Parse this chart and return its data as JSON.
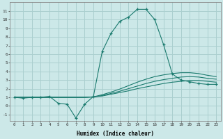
{
  "background_color": "#cce8e8",
  "grid_color": "#aacfcf",
  "line_color": "#1a7a6e",
  "xlabel": "Humidex (Indice chaleur)",
  "xlim": [
    -0.5,
    23.5
  ],
  "ylim": [
    -1.7,
    12.0
  ],
  "xticks": [
    0,
    1,
    2,
    3,
    4,
    5,
    6,
    7,
    8,
    9,
    10,
    11,
    12,
    13,
    14,
    15,
    16,
    17,
    18,
    19,
    20,
    21,
    22,
    23
  ],
  "yticks": [
    -1,
    0,
    1,
    2,
    3,
    4,
    5,
    6,
    7,
    8,
    9,
    10,
    11
  ],
  "series": [
    {
      "x": [
        0,
        1,
        2,
        3,
        4,
        5,
        6,
        7,
        8,
        9,
        10,
        11,
        12,
        13,
        14,
        15,
        16,
        17,
        18,
        19,
        20,
        21,
        22,
        23
      ],
      "y": [
        1.0,
        0.9,
        1.0,
        1.0,
        1.1,
        0.3,
        0.2,
        -1.4,
        0.2,
        1.1,
        6.3,
        8.4,
        9.8,
        10.3,
        11.2,
        11.2,
        10.0,
        7.1,
        3.7,
        3.0,
        2.8,
        2.6,
        2.5,
        2.5
      ],
      "marker": "+",
      "markersize": 3.5
    },
    {
      "x": [
        0,
        1,
        2,
        3,
        4,
        5,
        6,
        7,
        8,
        9,
        10,
        11,
        12,
        13,
        14,
        15,
        16,
        17,
        18,
        19,
        20,
        21,
        22,
        23
      ],
      "y": [
        1.0,
        1.0,
        1.0,
        1.0,
        1.0,
        1.0,
        1.0,
        1.0,
        1.0,
        1.05,
        1.15,
        1.35,
        1.55,
        1.75,
        2.0,
        2.2,
        2.4,
        2.6,
        2.75,
        2.85,
        2.95,
        2.95,
        2.85,
        2.75
      ],
      "marker": null
    },
    {
      "x": [
        0,
        1,
        2,
        3,
        4,
        5,
        6,
        7,
        8,
        9,
        10,
        11,
        12,
        13,
        14,
        15,
        16,
        17,
        18,
        19,
        20,
        21,
        22,
        23
      ],
      "y": [
        1.0,
        1.0,
        1.0,
        1.0,
        1.0,
        1.0,
        1.0,
        1.0,
        1.0,
        1.05,
        1.2,
        1.45,
        1.7,
        2.0,
        2.3,
        2.6,
        2.85,
        3.05,
        3.2,
        3.35,
        3.4,
        3.35,
        3.2,
        3.1
      ],
      "marker": null
    },
    {
      "x": [
        0,
        1,
        2,
        3,
        4,
        5,
        6,
        7,
        8,
        9,
        10,
        11,
        12,
        13,
        14,
        15,
        16,
        17,
        18,
        19,
        20,
        21,
        22,
        23
      ],
      "y": [
        1.0,
        1.0,
        1.0,
        1.0,
        1.0,
        1.0,
        1.0,
        1.0,
        1.0,
        1.05,
        1.3,
        1.6,
        1.95,
        2.35,
        2.75,
        3.1,
        3.4,
        3.6,
        3.75,
        3.85,
        3.85,
        3.75,
        3.55,
        3.4
      ],
      "marker": null
    }
  ]
}
